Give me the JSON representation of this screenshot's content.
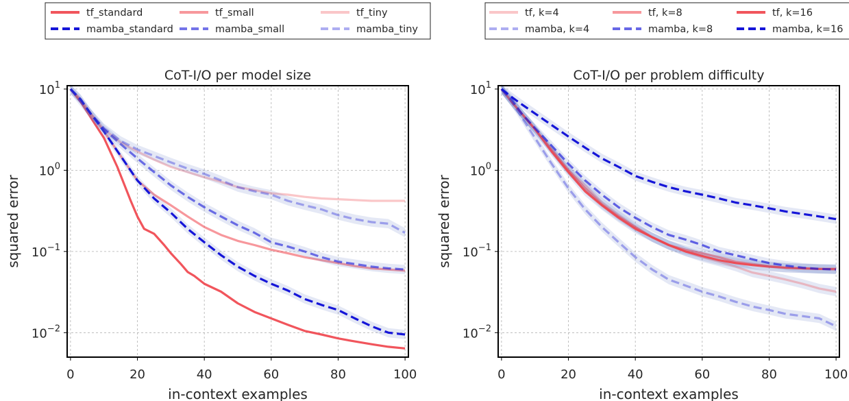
{
  "chart_data": [
    {
      "type": "line",
      "title": "CoT-I/O per model size",
      "xlabel": "in-context examples",
      "ylabel": "squared error",
      "xlim": [
        -1,
        101
      ],
      "ylim": [
        0.005,
        11
      ],
      "yscale": "log",
      "grid": true,
      "legend_position": "above",
      "xticks": [
        0,
        20,
        40,
        60,
        80,
        100
      ],
      "xtick_labels": [
        "0",
        "20",
        "40",
        "60",
        "80",
        "100"
      ],
      "yticks": [
        10,
        1,
        0.1,
        0.01
      ],
      "ytick_labels": [
        {
          "base": "10",
          "exp": "1"
        },
        {
          "base": "10",
          "exp": "0"
        },
        {
          "base": "10",
          "exp": "−1"
        },
        {
          "base": "10",
          "exp": "−2"
        }
      ],
      "legend_columns": 3,
      "legend_order": [
        "tf_standard",
        "tf_small",
        "tf_tiny",
        "mamba_standard",
        "mamba_small",
        "mamba_tiny"
      ],
      "series": [
        {
          "name": "tf_standard",
          "style": "solid",
          "color": "#f0424a",
          "opacity": 0.9,
          "band": false,
          "x": [
            0,
            3,
            6,
            10,
            14,
            18,
            20,
            22,
            25,
            28,
            30,
            33,
            35,
            37,
            40,
            45,
            50,
            55,
            60,
            65,
            70,
            75,
            80,
            85,
            90,
            95,
            100
          ],
          "y": [
            10,
            7,
            4.5,
            2.5,
            1.1,
            0.42,
            0.27,
            0.19,
            0.165,
            0.12,
            0.095,
            0.07,
            0.056,
            0.05,
            0.04,
            0.032,
            0.023,
            0.018,
            0.015,
            0.0125,
            0.0105,
            0.0095,
            0.0085,
            0.0078,
            0.0072,
            0.0067,
            0.0064
          ]
        },
        {
          "name": "tf_small",
          "style": "solid",
          "color": "#f0424a",
          "opacity": 0.55,
          "band": false,
          "x": [
            0,
            3,
            6,
            10,
            15,
            20,
            25,
            30,
            35,
            40,
            45,
            50,
            55,
            60,
            65,
            70,
            75,
            80,
            85,
            90,
            95,
            100
          ],
          "y": [
            10,
            7.5,
            5,
            3,
            1.5,
            0.75,
            0.5,
            0.37,
            0.27,
            0.2,
            0.16,
            0.135,
            0.12,
            0.105,
            0.095,
            0.085,
            0.078,
            0.072,
            0.066,
            0.062,
            0.06,
            0.058
          ]
        },
        {
          "name": "tf_tiny",
          "style": "solid",
          "color": "#f0424a",
          "opacity": 0.3,
          "band": false,
          "x": [
            0,
            3,
            6,
            10,
            15,
            20,
            25,
            30,
            35,
            40,
            45,
            50,
            55,
            60,
            65,
            70,
            75,
            80,
            85,
            90,
            95,
            100
          ],
          "y": [
            10,
            7,
            5,
            3.2,
            2.2,
            1.7,
            1.35,
            1.1,
            0.95,
            0.82,
            0.72,
            0.62,
            0.57,
            0.52,
            0.5,
            0.47,
            0.45,
            0.44,
            0.43,
            0.42,
            0.42,
            0.42
          ]
        },
        {
          "name": "mamba_standard",
          "style": "dash",
          "color": "#1515d8",
          "opacity": 1,
          "band": true,
          "x": [
            0,
            3,
            6,
            10,
            15,
            20,
            25,
            30,
            35,
            40,
            45,
            50,
            55,
            60,
            65,
            70,
            75,
            80,
            85,
            90,
            95,
            100
          ],
          "y": [
            10,
            7.5,
            5,
            3,
            1.5,
            0.75,
            0.45,
            0.3,
            0.19,
            0.13,
            0.09,
            0.065,
            0.05,
            0.04,
            0.033,
            0.026,
            0.022,
            0.019,
            0.015,
            0.012,
            0.01,
            0.0095
          ]
        },
        {
          "name": "mamba_small",
          "style": "dash",
          "color": "#1515d8",
          "opacity": 0.6,
          "band": true,
          "x": [
            0,
            3,
            6,
            10,
            15,
            20,
            25,
            30,
            35,
            40,
            45,
            50,
            55,
            60,
            65,
            70,
            75,
            80,
            85,
            90,
            95,
            100
          ],
          "y": [
            10,
            7.5,
            5,
            3.2,
            2.1,
            1.4,
            0.95,
            0.65,
            0.47,
            0.35,
            0.27,
            0.21,
            0.17,
            0.13,
            0.115,
            0.1,
            0.085,
            0.075,
            0.07,
            0.065,
            0.062,
            0.06
          ]
        },
        {
          "name": "mamba_tiny",
          "style": "dash",
          "color": "#1515d8",
          "opacity": 0.35,
          "band": true,
          "x": [
            0,
            3,
            6,
            10,
            15,
            20,
            25,
            30,
            35,
            40,
            45,
            50,
            55,
            60,
            65,
            70,
            75,
            80,
            85,
            90,
            95,
            100
          ],
          "y": [
            10,
            7,
            5,
            3.3,
            2.3,
            1.8,
            1.5,
            1.25,
            1.05,
            0.9,
            0.75,
            0.62,
            0.55,
            0.5,
            0.42,
            0.37,
            0.33,
            0.28,
            0.25,
            0.23,
            0.22,
            0.17
          ]
        }
      ]
    },
    {
      "type": "line",
      "title": "CoT-I/O per problem difficulty",
      "xlabel": "in-context examples",
      "ylabel": "squared error",
      "xlim": [
        -1,
        101
      ],
      "ylim": [
        0.005,
        11
      ],
      "yscale": "log",
      "grid": true,
      "legend_position": "above",
      "xticks": [
        0,
        20,
        40,
        60,
        80,
        100
      ],
      "xtick_labels": [
        "0",
        "20",
        "40",
        "60",
        "80",
        "100"
      ],
      "yticks": [
        10,
        1,
        0.1,
        0.01
      ],
      "ytick_labels": [
        {
          "base": "10",
          "exp": "1"
        },
        {
          "base": "10",
          "exp": "0"
        },
        {
          "base": "10",
          "exp": "−1"
        },
        {
          "base": "10",
          "exp": "−2"
        }
      ],
      "legend_columns": 3,
      "legend_order": [
        "tf, k=4",
        "tf, k=8",
        "tf, k=16",
        "mamba, k=4",
        "mamba, k=8",
        "mamba, k=16"
      ],
      "series": [
        {
          "name": "tf, k=4",
          "style": "solid",
          "color": "#f0424a",
          "opacity": 0.3,
          "band": true,
          "x": [
            0,
            3,
            6,
            10,
            15,
            20,
            25,
            30,
            35,
            40,
            45,
            50,
            55,
            60,
            65,
            70,
            75,
            80,
            85,
            90,
            95,
            100
          ],
          "y": [
            10,
            7,
            5,
            3.2,
            1.8,
            1,
            0.65,
            0.4,
            0.28,
            0.2,
            0.15,
            0.12,
            0.1,
            0.085,
            0.075,
            0.065,
            0.055,
            0.05,
            0.045,
            0.04,
            0.035,
            0.032
          ]
        },
        {
          "name": "tf, k=8",
          "style": "solid",
          "color": "#f0424a",
          "opacity": 0.55,
          "band": true,
          "x": [
            0,
            3,
            6,
            10,
            15,
            20,
            25,
            30,
            35,
            40,
            45,
            50,
            55,
            60,
            65,
            70,
            75,
            80,
            85,
            90,
            95,
            100
          ],
          "y": [
            10,
            7,
            5,
            3.2,
            1.8,
            1,
            0.6,
            0.38,
            0.27,
            0.2,
            0.15,
            0.12,
            0.105,
            0.095,
            0.085,
            0.075,
            0.07,
            0.066,
            0.063,
            0.062,
            0.061,
            0.06
          ]
        },
        {
          "name": "tf, k=16",
          "style": "solid",
          "color": "#f0424a",
          "opacity": 0.9,
          "band": true,
          "x": [
            0,
            3,
            6,
            10,
            15,
            20,
            25,
            30,
            35,
            40,
            45,
            50,
            55,
            60,
            65,
            70,
            75,
            80,
            85,
            90,
            95,
            100
          ],
          "y": [
            10,
            7,
            5,
            3.2,
            1.7,
            0.95,
            0.55,
            0.37,
            0.26,
            0.19,
            0.15,
            0.12,
            0.1,
            0.088,
            0.078,
            0.072,
            0.068,
            0.065,
            0.063,
            0.062,
            0.061,
            0.061
          ]
        },
        {
          "name": "mamba, k=4",
          "style": "dash",
          "color": "#1515d8",
          "opacity": 0.35,
          "band": true,
          "x": [
            0,
            3,
            6,
            10,
            15,
            20,
            25,
            30,
            35,
            40,
            45,
            50,
            55,
            60,
            65,
            70,
            75,
            80,
            85,
            90,
            95,
            100
          ],
          "y": [
            10,
            7,
            4.5,
            2.5,
            1.2,
            0.6,
            0.33,
            0.2,
            0.13,
            0.085,
            0.06,
            0.045,
            0.038,
            0.032,
            0.028,
            0.024,
            0.021,
            0.019,
            0.017,
            0.016,
            0.015,
            0.012
          ]
        },
        {
          "name": "mamba, k=8",
          "style": "dash",
          "color": "#1515d8",
          "opacity": 0.65,
          "band": true,
          "x": [
            0,
            3,
            6,
            10,
            15,
            20,
            25,
            30,
            35,
            40,
            45,
            50,
            55,
            60,
            65,
            70,
            75,
            80,
            85,
            90,
            95,
            100
          ],
          "y": [
            10,
            7.5,
            5,
            3.3,
            2,
            1.2,
            0.75,
            0.5,
            0.35,
            0.26,
            0.2,
            0.16,
            0.14,
            0.12,
            0.1,
            0.09,
            0.08,
            0.072,
            0.067,
            0.063,
            0.061,
            0.06
          ]
        },
        {
          "name": "mamba, k=16",
          "style": "dash",
          "color": "#1515d8",
          "opacity": 1,
          "band": true,
          "x": [
            0,
            3,
            6,
            10,
            15,
            20,
            25,
            30,
            35,
            40,
            45,
            50,
            55,
            60,
            65,
            70,
            75,
            80,
            85,
            90,
            95,
            100
          ],
          "y": [
            10,
            8,
            6.5,
            5,
            3.6,
            2.6,
            1.9,
            1.4,
            1.1,
            0.85,
            0.72,
            0.62,
            0.55,
            0.5,
            0.45,
            0.4,
            0.37,
            0.34,
            0.31,
            0.29,
            0.27,
            0.25
          ]
        }
      ]
    }
  ]
}
